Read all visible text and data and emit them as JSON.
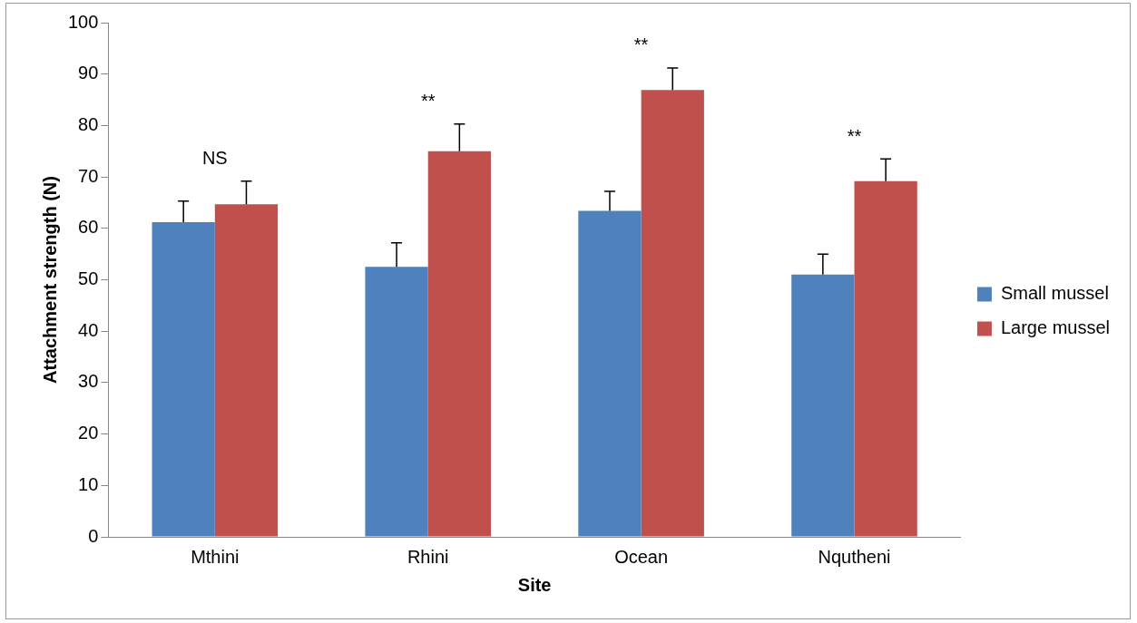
{
  "chart_data": {
    "type": "bar",
    "xlabel": "Site",
    "ylabel": "Attachment strength (N)",
    "categories": [
      "Mthini",
      "Rhini",
      "Ocean",
      "Nqutheni"
    ],
    "series": [
      {
        "name": "Small mussel",
        "color": "#4f81bd",
        "values": [
          61.2,
          52.5,
          63.4,
          51.0
        ],
        "errors": [
          [
            61.2,
            65.3
          ],
          [
            52.5,
            57.2
          ],
          [
            63.4,
            67.2
          ],
          [
            51.0,
            55.0
          ]
        ]
      },
      {
        "name": "Large mussel",
        "color": "#c0504d",
        "values": [
          64.7,
          75.0,
          86.9,
          69.2
        ],
        "errors": [
          [
            64.7,
            69.2
          ],
          [
            75.0,
            80.3
          ],
          [
            86.9,
            91.2
          ],
          [
            69.2,
            73.5
          ]
        ]
      }
    ],
    "ylim": [
      0,
      100
    ],
    "yticks": [
      0,
      10,
      20,
      30,
      40,
      50,
      60,
      70,
      80,
      90,
      100
    ],
    "grid": false,
    "legend": "right",
    "annotations": [
      "NS",
      "**",
      "**",
      "**"
    ]
  }
}
